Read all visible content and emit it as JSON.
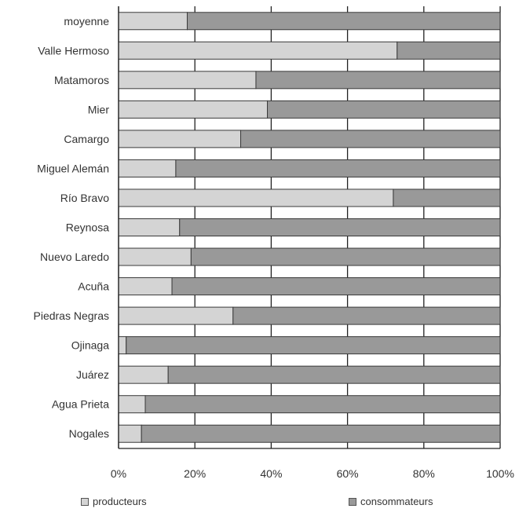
{
  "chart_data": {
    "type": "bar",
    "orientation": "horizontal",
    "stacked": "percent",
    "categories": [
      "moyenne",
      "Valle Hermoso",
      "Matamoros",
      "Mier",
      "Camargo",
      "Miguel Alemán",
      "Río Bravo",
      "Reynosa",
      "Nuevo Laredo",
      "Acuña",
      "Piedras Negras",
      "Ojinaga",
      "Juárez",
      "Agua Prieta",
      "Nogales"
    ],
    "series": [
      {
        "name": "producteurs",
        "color": "#d4d4d4",
        "values": [
          18,
          73,
          36,
          39,
          32,
          15,
          72,
          16,
          19,
          14,
          30,
          2,
          13,
          7,
          6
        ]
      },
      {
        "name": "consommateurs",
        "color": "#999999",
        "values": [
          82,
          27,
          64,
          61,
          68,
          85,
          28,
          84,
          81,
          86,
          70,
          98,
          87,
          93,
          94
        ]
      }
    ],
    "xlim": [
      0,
      100
    ],
    "xticks": [
      "0%",
      "20%",
      "40%",
      "60%",
      "80%",
      "100%"
    ],
    "grid": "vertical",
    "legend": "bottom",
    "title": "",
    "xlabel": "",
    "ylabel": ""
  }
}
